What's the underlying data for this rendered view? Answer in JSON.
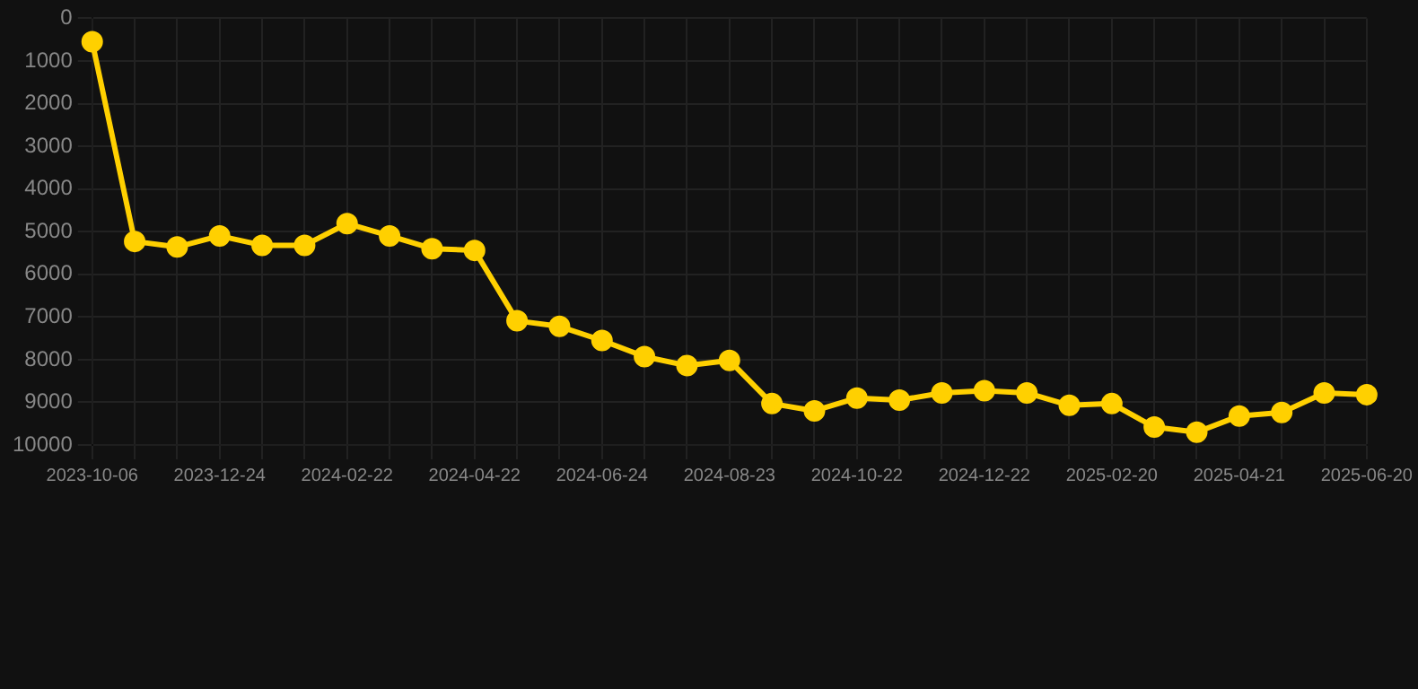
{
  "chart_data": {
    "type": "line",
    "categories": [
      "2023-10-06",
      null,
      null,
      "2023-12-24",
      null,
      null,
      "2024-02-22",
      null,
      null,
      "2024-04-22",
      null,
      null,
      "2024-06-24",
      null,
      null,
      "2024-08-23",
      null,
      null,
      "2024-10-22",
      null,
      null,
      "2024-12-22",
      null,
      null,
      "2025-02-20",
      null,
      null,
      "2025-04-21",
      null,
      null,
      "2025-06-20"
    ],
    "series": [
      {
        "color": "#ffd000",
        "values": [
          550,
          5230,
          5360,
          5100,
          5320,
          5320,
          4810,
          5100,
          5400,
          5440,
          7090,
          7220,
          7550,
          7930,
          8140,
          8020,
          9030,
          9200,
          8900,
          8950,
          8780,
          8730,
          8780,
          9070,
          9030,
          9580,
          9700,
          9320,
          9240,
          8780,
          8820
        ]
      }
    ],
    "ylim": [
      10000,
      0
    ],
    "yticks": [
      0,
      1000,
      2000,
      3000,
      4000,
      5000,
      6000,
      7000,
      8000,
      9000,
      10000
    ],
    "grid": true,
    "marker": "circle",
    "line_style": "solid",
    "legend": false
  }
}
